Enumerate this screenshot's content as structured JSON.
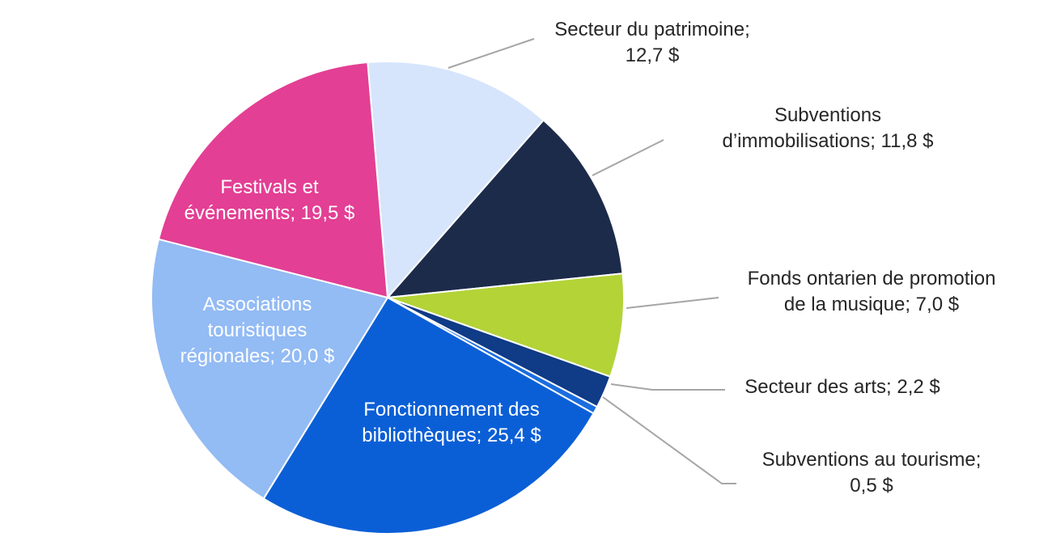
{
  "chart_data": {
    "type": "pie",
    "start_angle_deg": -4.85,
    "direction": "clockwise",
    "slices": [
      {
        "label": "Secteur du patrimoine; 12,7 $",
        "label_lines": [
          "Secteur du patrimoine;",
          "12,7 $"
        ],
        "value": 12.7,
        "color": "#d6e5fb",
        "label_placement": "outside"
      },
      {
        "label": "Subventions d’immobilisations; 11,8 $",
        "label_lines": [
          "Subventions",
          "d’immobilisations; 11,8 $"
        ],
        "value": 11.8,
        "color": "#1d2b4b",
        "label_placement": "outside"
      },
      {
        "label": "Fonds ontarien de promotion de la musique; 7,0 $",
        "label_lines": [
          "Fonds ontarien de promotion",
          "de la musique; 7,0 $"
        ],
        "value": 7.0,
        "color": "#b3d337",
        "label_placement": "outside"
      },
      {
        "label": "Secteur des arts; 2,2 $",
        "label_lines": [
          "Secteur des arts; 2,2 $"
        ],
        "value": 2.2,
        "color": "#0f3b87",
        "label_placement": "outside"
      },
      {
        "label": "Subventions au tourisme; 0,5 $",
        "label_lines": [
          "Subventions au tourisme;",
          "0,5 $"
        ],
        "value": 0.5,
        "color": "#1a6ddf",
        "label_placement": "outside"
      },
      {
        "label": "Fonctionnement des bibliothèques; 25,4 $",
        "label_lines": [
          "Fonctionnement des",
          "bibliothèques; 25,4 $"
        ],
        "value": 25.4,
        "color": "#0b5fd6",
        "label_placement": "inside"
      },
      {
        "label": "Associations touristiques régionales; 20,0 $",
        "label_lines": [
          "Associations",
          "touristiques",
          "régionales; 20,0 $"
        ],
        "value": 20.0,
        "color": "#93bbf4",
        "label_placement": "inside"
      },
      {
        "label": "Festivals et événements; 19,5 $",
        "label_lines": [
          "Festivals et",
          "événements; 19,5 $"
        ],
        "value": 19.5,
        "color": "#e33f94",
        "label_placement": "inside"
      }
    ],
    "leader_line_color": "#a6a6a6",
    "outside_label_color": "#262626",
    "inside_label_color": "#ffffff"
  }
}
